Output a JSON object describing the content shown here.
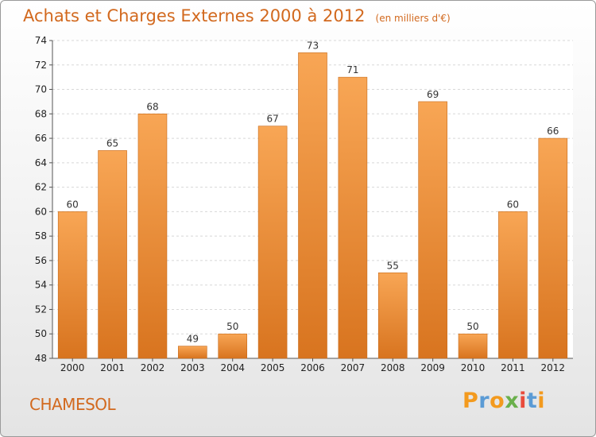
{
  "chart_data": {
    "type": "bar",
    "title": "Achats et Charges Externes 2000 à 2012",
    "subtitle": "(en milliers d'€)",
    "categories": [
      "2000",
      "2001",
      "2002",
      "2003",
      "2004",
      "2005",
      "2006",
      "2007",
      "2008",
      "2009",
      "2010",
      "2011",
      "2012"
    ],
    "values": [
      60,
      65,
      68,
      49,
      50,
      67,
      73,
      71,
      55,
      69,
      50,
      60,
      66
    ],
    "ylim": [
      48,
      74
    ],
    "yticks": [
      48,
      50,
      52,
      54,
      56,
      58,
      60,
      62,
      64,
      66,
      68,
      70,
      72,
      74
    ],
    "grid": true,
    "bar_color_top": "#f8a655",
    "bar_color_bottom": "#d8741f",
    "xlabel": "",
    "ylabel": ""
  },
  "footer": {
    "commune": "CHAMESOL"
  },
  "logo": {
    "letters": [
      "P",
      "r",
      "o",
      "x",
      "i",
      "t",
      "i"
    ],
    "colors": [
      "#f39a1e",
      "#5b9bd5",
      "#f39a1e",
      "#6ab04c",
      "#e94b3c",
      "#5b9bd5",
      "#f39a1e"
    ]
  },
  "colors": {
    "accent": "#d2691e"
  }
}
